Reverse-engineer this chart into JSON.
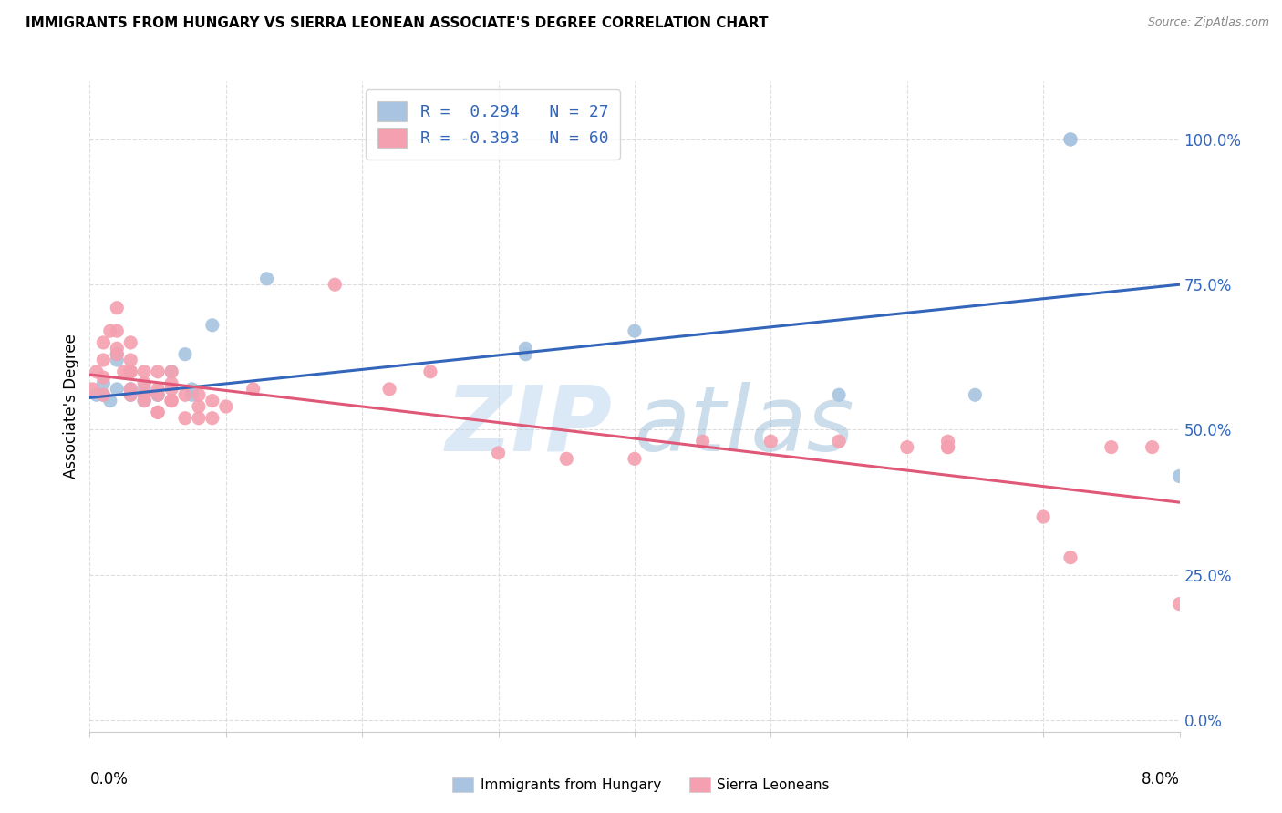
{
  "title": "IMMIGRANTS FROM HUNGARY VS SIERRA LEONEAN ASSOCIATE'S DEGREE CORRELATION CHART",
  "source": "Source: ZipAtlas.com",
  "ylabel": "Associate's Degree",
  "yticks": [
    "0.0%",
    "25.0%",
    "50.0%",
    "75.0%",
    "100.0%"
  ],
  "ytick_vals": [
    0.0,
    0.25,
    0.5,
    0.75,
    1.0
  ],
  "xlim": [
    0.0,
    0.08
  ],
  "ylim": [
    -0.02,
    1.1
  ],
  "legend_r1": "R =  0.294   N = 27",
  "legend_r2": "R = -0.393   N = 60",
  "blue_color": "#A8C4E0",
  "pink_color": "#F4A0B0",
  "blue_line_color": "#3366BB",
  "pink_line_color": "#E05878",
  "watermark": "ZIPatlas",
  "watermark_color": "#B8D4EE",
  "legend_label_blue": "Immigrants from Hungary",
  "legend_label_pink": "Sierra Leoneans",
  "blue_scatter_x": [
    0.0005,
    0.001,
    0.001,
    0.0015,
    0.002,
    0.002,
    0.002,
    0.003,
    0.003,
    0.004,
    0.004,
    0.005,
    0.005,
    0.006,
    0.007,
    0.0075,
    0.0075,
    0.009,
    0.013,
    0.032,
    0.032,
    0.04,
    0.055,
    0.065,
    0.072,
    0.072,
    0.08
  ],
  "blue_scatter_y": [
    0.56,
    0.58,
    0.56,
    0.55,
    0.62,
    0.63,
    0.57,
    0.57,
    0.56,
    0.55,
    0.57,
    0.56,
    0.56,
    0.6,
    0.63,
    0.57,
    0.56,
    0.68,
    0.76,
    0.63,
    0.64,
    0.67,
    0.56,
    0.56,
    1.0,
    1.0,
    0.42
  ],
  "pink_scatter_x": [
    0.0002,
    0.0005,
    0.001,
    0.001,
    0.001,
    0.001,
    0.0015,
    0.002,
    0.002,
    0.002,
    0.002,
    0.0025,
    0.003,
    0.003,
    0.003,
    0.003,
    0.003,
    0.003,
    0.004,
    0.004,
    0.004,
    0.004,
    0.004,
    0.005,
    0.005,
    0.005,
    0.005,
    0.005,
    0.006,
    0.006,
    0.006,
    0.006,
    0.006,
    0.007,
    0.007,
    0.008,
    0.008,
    0.008,
    0.009,
    0.009,
    0.01,
    0.012,
    0.018,
    0.022,
    0.025,
    0.03,
    0.035,
    0.04,
    0.045,
    0.05,
    0.055,
    0.06,
    0.063,
    0.063,
    0.063,
    0.07,
    0.072,
    0.075,
    0.078,
    0.08
  ],
  "pink_scatter_y": [
    0.57,
    0.6,
    0.56,
    0.59,
    0.62,
    0.65,
    0.67,
    0.64,
    0.67,
    0.71,
    0.63,
    0.6,
    0.56,
    0.6,
    0.62,
    0.65,
    0.57,
    0.6,
    0.56,
    0.56,
    0.58,
    0.6,
    0.55,
    0.53,
    0.53,
    0.56,
    0.57,
    0.6,
    0.55,
    0.57,
    0.6,
    0.55,
    0.58,
    0.52,
    0.56,
    0.54,
    0.52,
    0.56,
    0.52,
    0.55,
    0.54,
    0.57,
    0.75,
    0.57,
    0.6,
    0.46,
    0.45,
    0.45,
    0.48,
    0.48,
    0.48,
    0.47,
    0.47,
    0.47,
    0.48,
    0.35,
    0.28,
    0.47,
    0.47,
    0.2
  ],
  "blue_line_x": [
    0.0,
    0.08
  ],
  "blue_line_y": [
    0.555,
    0.75
  ],
  "pink_line_x": [
    0.0,
    0.08
  ],
  "pink_line_y": [
    0.595,
    0.375
  ],
  "grid_color": "#DDDDDD",
  "background_color": "#FFFFFF",
  "xtick_positions": [
    0.0,
    0.01,
    0.02,
    0.03,
    0.04,
    0.05,
    0.06,
    0.07,
    0.08
  ],
  "vline_positions": [
    0.02,
    0.04,
    0.06,
    0.08
  ]
}
